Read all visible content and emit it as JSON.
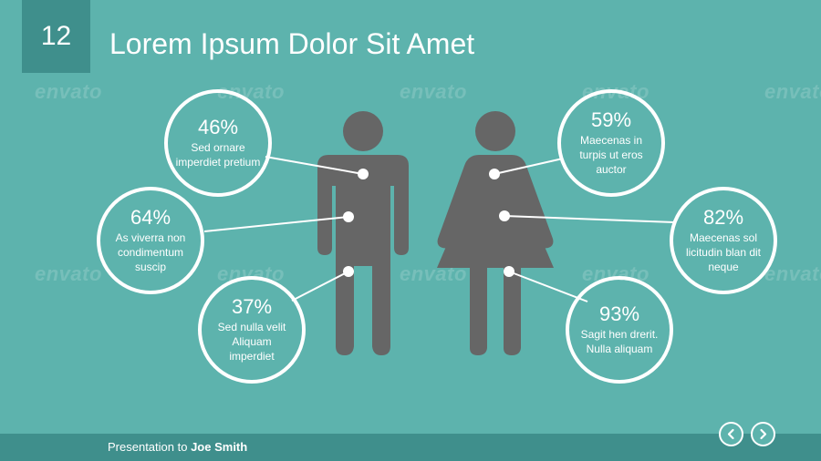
{
  "slide": {
    "number": "12",
    "title": "Lorem Ipsum Dolor Sit Amet"
  },
  "stats": [
    {
      "figure": "man",
      "percent": "46%",
      "text": "Sed ornare imperdiet pretium"
    },
    {
      "figure": "man",
      "percent": "64%",
      "text": "As viverra non condimentum suscip"
    },
    {
      "figure": "man",
      "percent": "37%",
      "text": "Sed nulla velit Aliquam imperdiet"
    },
    {
      "figure": "woman",
      "percent": "59%",
      "text": "Maecenas in turpis ut eros auctor"
    },
    {
      "figure": "woman",
      "percent": "82%",
      "text": "Maecenas sol licitudin blan dit neque"
    },
    {
      "figure": "woman",
      "percent": "93%",
      "text": "Sagit hen drerit. Nulla aliquam"
    }
  ],
  "footer": {
    "prefix": "Presentation to",
    "name": "Joe Smith"
  },
  "watermark": "envato",
  "colors": {
    "background": "#5db3ad",
    "panel": "#3f8f8c",
    "figure": "#666666",
    "text": "#ffffff"
  },
  "icons": {
    "prev": "chevron-left-icon",
    "next": "chevron-right-icon",
    "man": "man-figure-icon",
    "woman": "woman-figure-icon"
  }
}
